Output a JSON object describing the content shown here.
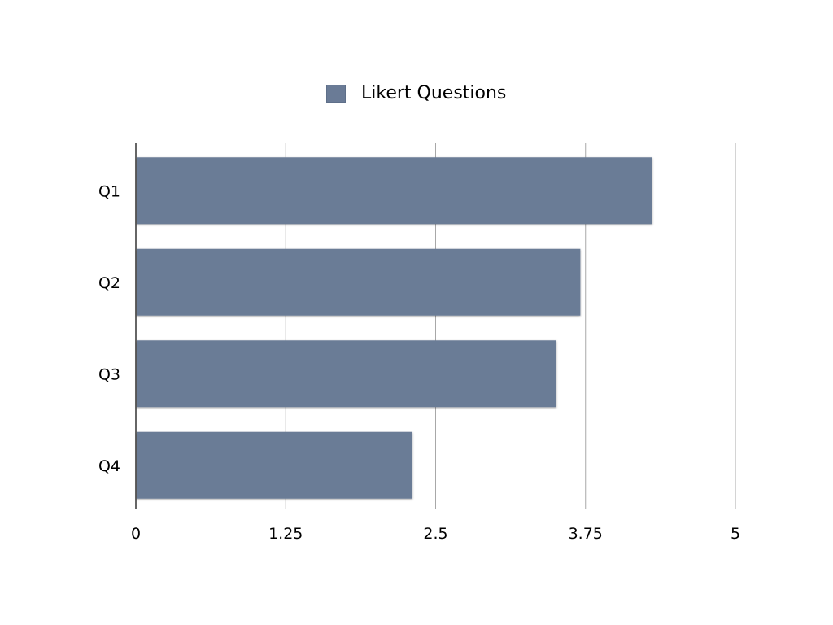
{
  "chart_data": {
    "type": "bar",
    "orientation": "horizontal",
    "categories": [
      "Q1",
      "Q2",
      "Q3",
      "Q4"
    ],
    "series": [
      {
        "name": "Likert Questions",
        "values": [
          4.3,
          3.7,
          3.5,
          2.3
        ],
        "color": "#6a7b96"
      }
    ],
    "xlim": [
      0,
      5
    ],
    "x_ticks": [
      "0",
      "1.25",
      "2.5",
      "3.75",
      "5"
    ],
    "x_tick_values": [
      0,
      1.25,
      2.5,
      3.75,
      5
    ],
    "grid": "vertical",
    "legend": "top-center"
  }
}
